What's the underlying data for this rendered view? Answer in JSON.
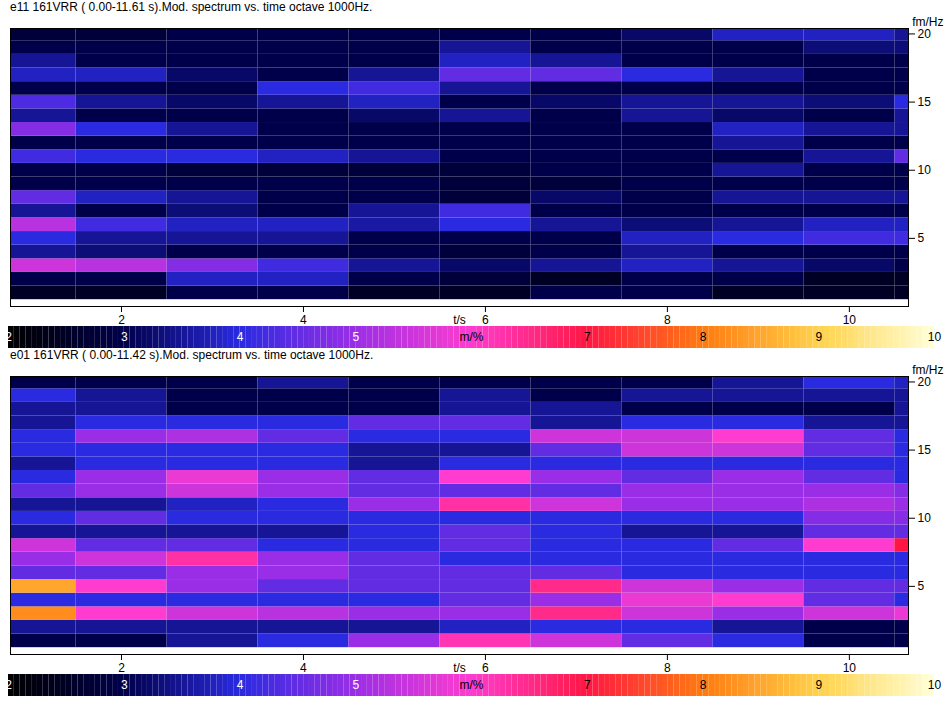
{
  "chart_data": [
    {
      "type": "heatmap",
      "title": "e11 161VRR ( 0.00-11.61 s).Mod. spectrum vs. time octave 1000Hz.",
      "xlabel": "t/s",
      "ylabel": "fm/Hz",
      "xlim": [
        0.78,
        10.65
      ],
      "xticks": [
        2,
        4,
        6,
        8,
        10
      ],
      "ylim": [
        0,
        20.4
      ],
      "yticks": [
        5,
        10,
        15,
        20
      ],
      "colorbar": {
        "range": [
          2,
          10
        ],
        "ticks": [
          2,
          3,
          4,
          5,
          7,
          8,
          9,
          10
        ],
        "label": "m/%"
      },
      "heatmap": {
        "t": [
          1,
          2,
          3,
          4,
          5,
          6,
          7,
          8,
          9,
          10,
          11
        ],
        "fm": [
          1,
          2,
          3,
          4,
          5,
          6,
          7,
          8,
          9,
          10,
          11,
          12,
          13,
          14,
          15,
          16,
          17,
          18,
          19,
          20
        ],
        "values": [
          [
            2.5,
            2.5,
            3,
            3,
            2.5,
            2.5,
            3,
            3,
            2.5,
            2.5,
            2.5
          ],
          [
            3,
            3,
            3.8,
            3.8,
            3,
            2.8,
            2.5,
            3,
            3,
            2.5,
            2.5
          ],
          [
            5.5,
            5.3,
            4.8,
            4.2,
            3.5,
            3.2,
            3.5,
            3.8,
            3.5,
            3.2,
            3
          ],
          [
            3.5,
            3.3,
            3,
            3,
            3,
            2.8,
            3,
            3.5,
            3,
            3,
            3
          ],
          [
            4,
            3.5,
            3.5,
            3.5,
            3,
            3,
            3,
            3.8,
            4,
            4.2,
            4.2
          ],
          [
            5.3,
            4.2,
            3.8,
            3.8,
            3.6,
            4,
            3.5,
            3.3,
            3.5,
            3.8,
            3.8
          ],
          [
            3.5,
            3,
            3.3,
            3,
            3.5,
            4.2,
            3,
            3,
            3,
            3,
            3
          ],
          [
            4.5,
            3.8,
            3.5,
            3,
            3,
            2.8,
            3.2,
            3,
            3.5,
            3.5,
            3.5
          ],
          [
            3,
            3,
            3,
            3,
            3,
            2.8,
            2.8,
            3,
            3,
            3,
            3
          ],
          [
            3,
            3,
            2.8,
            2.8,
            2.8,
            2.8,
            3,
            3,
            3.5,
            3,
            3
          ],
          [
            4.2,
            4,
            4,
            3.8,
            3.5,
            3,
            3,
            3,
            3,
            3.5,
            4.5
          ],
          [
            3,
            3,
            3,
            3,
            3,
            3,
            3,
            3,
            3.5,
            3,
            3
          ],
          [
            4.8,
            4,
            3.5,
            3,
            3,
            3,
            3,
            3,
            3.8,
            3.5,
            3.5
          ],
          [
            3.5,
            3,
            3,
            3,
            3.2,
            3.5,
            3,
            3.5,
            3.2,
            3,
            3.5
          ],
          [
            4.3,
            3.5,
            3.2,
            3.5,
            3.8,
            3,
            3.2,
            3.5,
            3.5,
            3.3,
            4
          ],
          [
            3,
            3,
            3,
            4,
            4.2,
            3.5,
            3,
            3,
            3,
            3,
            3
          ],
          [
            3.8,
            3.8,
            3.2,
            3,
            3.5,
            4.5,
            4.5,
            4,
            3.5,
            3,
            3
          ],
          [
            3.5,
            3,
            3,
            3,
            3,
            3.8,
            3.5,
            3,
            3,
            3,
            3
          ],
          [
            3,
            3,
            3,
            3,
            3,
            3.5,
            3,
            3,
            3,
            3.3,
            3.3
          ],
          [
            2.8,
            2.8,
            3,
            3,
            3,
            3,
            3,
            3.2,
            3.8,
            3.8,
            3.5
          ]
        ]
      }
    },
    {
      "type": "heatmap",
      "title": "e01 161VRR ( 0.00-11.42 s).Mod. spectrum vs. time octave 1000Hz.",
      "xlabel": "t/s",
      "ylabel": "fm/Hz",
      "xlim": [
        0.78,
        10.65
      ],
      "xticks": [
        2,
        4,
        6,
        8,
        10
      ],
      "ylim": [
        0,
        20.4
      ],
      "yticks": [
        5,
        10,
        15,
        20
      ],
      "colorbar": {
        "range": [
          2,
          10
        ],
        "ticks": [
          2,
          3,
          4,
          5,
          7,
          8,
          9,
          10
        ],
        "label": "m/%"
      },
      "heatmap": {
        "t": [
          1,
          2,
          3,
          4,
          5,
          6,
          7,
          8,
          9,
          10,
          11
        ],
        "fm": [
          1,
          2,
          3,
          4,
          5,
          6,
          7,
          8,
          9,
          10,
          11,
          12,
          13,
          14,
          15,
          16,
          17,
          18,
          19,
          20
        ],
        "values": [
          [
            3,
            3,
            3.5,
            4,
            5,
            6.2,
            5.5,
            4.5,
            4,
            3,
            3
          ],
          [
            3.5,
            3.5,
            3.5,
            3.5,
            3.5,
            3.8,
            4,
            4,
            3.5,
            3,
            3
          ],
          [
            8.2,
            6,
            5.5,
            5.3,
            5,
            5,
            6.5,
            5.5,
            5,
            5.5,
            5.8
          ],
          [
            4,
            4,
            4,
            4,
            4,
            4.5,
            5,
            5.8,
            6,
            4.5,
            4
          ],
          [
            8.5,
            6,
            5,
            4.5,
            4.5,
            4.5,
            6.5,
            5.5,
            5,
            4.5,
            4.5
          ],
          [
            4.5,
            4.5,
            5,
            5,
            4.5,
            4.5,
            4.5,
            4,
            4,
            4,
            4
          ],
          [
            5,
            5.5,
            6.3,
            5,
            4.5,
            4,
            4,
            4,
            4,
            4,
            4
          ],
          [
            5.5,
            4.5,
            4.5,
            4,
            4,
            4.5,
            4,
            4,
            4.5,
            6,
            7
          ],
          [
            3.5,
            3.5,
            3.5,
            3.5,
            4,
            4.5,
            4,
            3.5,
            3.5,
            4.5,
            4.5
          ],
          [
            4,
            4.5,
            4,
            4,
            4,
            4,
            4,
            4,
            4,
            4.8,
            4.8
          ],
          [
            3.5,
            3.5,
            3.8,
            4,
            5,
            6.3,
            5.5,
            5,
            5,
            5.2,
            5
          ],
          [
            4.5,
            5,
            5.5,
            5,
            4.5,
            4.5,
            4.5,
            5,
            5,
            5,
            4.8
          ],
          [
            4,
            5,
            5.8,
            5,
            4.5,
            6,
            5,
            4.5,
            5,
            4.5,
            4
          ],
          [
            3.5,
            4,
            4,
            4,
            3.5,
            4,
            4,
            4,
            4,
            4,
            4
          ],
          [
            4,
            4,
            4,
            4,
            3.5,
            3.5,
            4.5,
            5.5,
            5.5,
            4.5,
            4
          ],
          [
            4,
            5,
            5.2,
            4.5,
            4,
            4,
            5.5,
            5.5,
            6,
            4.5,
            4
          ],
          [
            3.5,
            4,
            4,
            4,
            4.5,
            4.5,
            3.5,
            4,
            4,
            3.5,
            3.5
          ],
          [
            3.5,
            3.5,
            3,
            3,
            3,
            3.5,
            3.5,
            3,
            3,
            3,
            3.5
          ],
          [
            4,
            3.5,
            3,
            3,
            3,
            3.5,
            3,
            3.5,
            3.5,
            3.5,
            3.5
          ],
          [
            3,
            3,
            3,
            3.5,
            3,
            3,
            3,
            3,
            3.5,
            4,
            3.8
          ]
        ]
      }
    }
  ]
}
